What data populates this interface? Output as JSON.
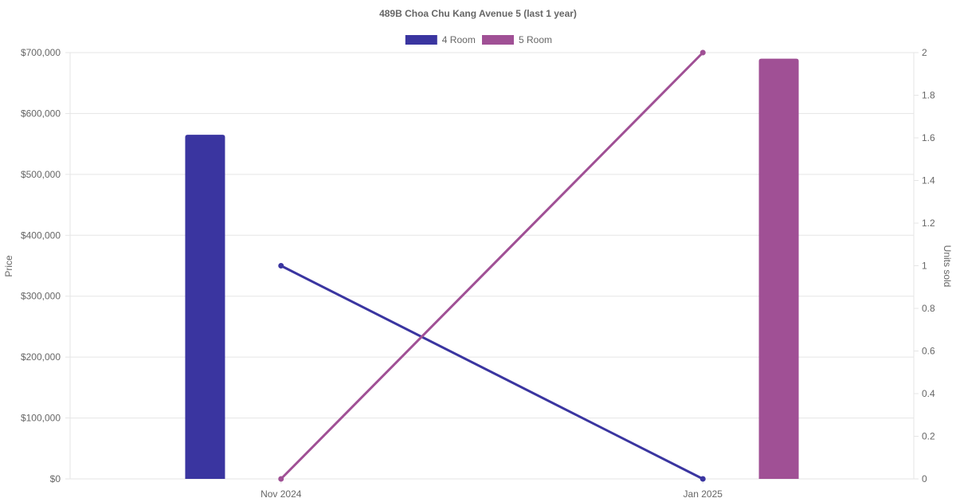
{
  "chart_data": {
    "type": "bar",
    "title": "489B Choa Chu Kang Avenue 5 (last 1 year)",
    "categories": [
      "Nov 2024",
      "Jan 2025"
    ],
    "y_left": {
      "label": "Price",
      "ylim": [
        0,
        700000
      ],
      "ticks": [
        0,
        100000,
        200000,
        300000,
        400000,
        500000,
        600000,
        700000
      ],
      "tick_labels": [
        "$0",
        "$100,000",
        "$200,000",
        "$300,000",
        "$400,000",
        "$500,000",
        "$600,000",
        "$700,000"
      ]
    },
    "y_right": {
      "label": "Units sold",
      "ylim": [
        0,
        2
      ],
      "ticks": [
        0,
        0.2,
        0.4,
        0.6,
        0.8,
        1,
        1.2,
        1.4,
        1.6,
        1.8,
        2
      ],
      "tick_labels": [
        "0",
        "0.2",
        "0.4",
        "0.6",
        "0.8",
        "1",
        "1.2",
        "1.4",
        "1.6",
        "1.8",
        "2"
      ]
    },
    "series": [
      {
        "name": "4 Room",
        "color": "#3a35a0",
        "price_values": [
          565000,
          null
        ],
        "units_sold": [
          1,
          0
        ]
      },
      {
        "name": "5 Room",
        "color": "#a05095",
        "price_values": [
          null,
          690000
        ],
        "units_sold": [
          0,
          2
        ]
      }
    ],
    "grid": true,
    "legend_position": "top-center"
  }
}
